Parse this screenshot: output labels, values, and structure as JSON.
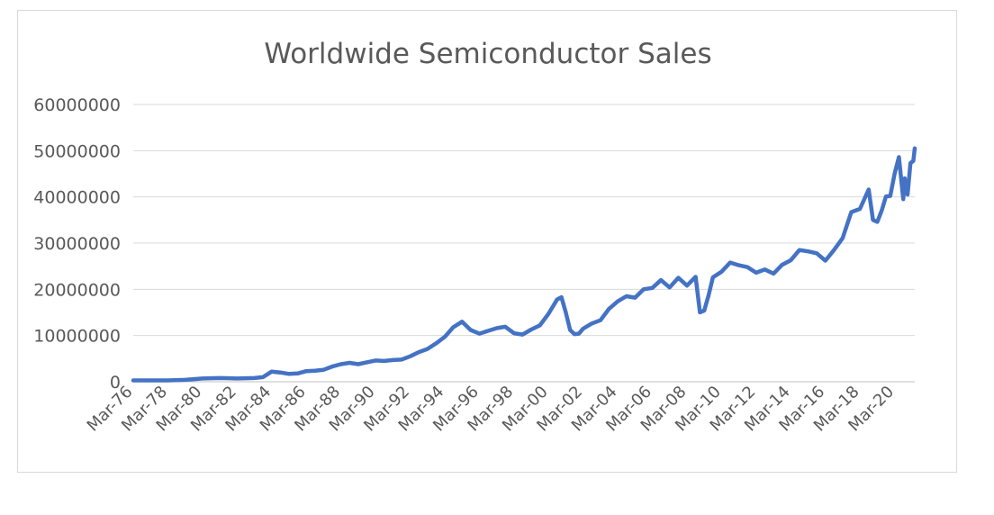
{
  "chart_data": {
    "type": "line",
    "title": "Worldwide Semiconductor Sales",
    "xlabel": "",
    "ylabel": "",
    "ylim": [
      0,
      60000000
    ],
    "yticks": [
      "0",
      "10000000",
      "20000000",
      "30000000",
      "40000000",
      "50000000",
      "60000000"
    ],
    "xticks": [
      "Mar-76",
      "Mar-78",
      "Mar-80",
      "Mar-82",
      "Mar-84",
      "Mar-86",
      "Mar-88",
      "Mar-90",
      "Mar-92",
      "Mar-94",
      "Mar-96",
      "Mar-98",
      "Mar-00",
      "Mar-02",
      "Mar-04",
      "Mar-06",
      "Mar-08",
      "Mar-10",
      "Mar-12",
      "Mar-14",
      "Mar-16",
      "Mar-18",
      "Mar-20"
    ],
    "grid": true,
    "legend": "none",
    "color": "#4472c4",
    "series": [
      {
        "x": [
          "Mar-76",
          "Mar-77",
          "Mar-78",
          "Mar-79",
          "Mar-80",
          "Mar-81",
          "Mar-82",
          "Mar-83",
          "Sep-83",
          "Mar-84",
          "Sep-84",
          "Mar-85",
          "Sep-85",
          "Mar-86",
          "Sep-86",
          "Mar-87",
          "Sep-87",
          "Mar-88",
          "Sep-88",
          "Mar-89",
          "Sep-89",
          "Mar-90",
          "Sep-90",
          "Mar-91",
          "Sep-91",
          "Mar-92",
          "Sep-92",
          "Mar-93",
          "Sep-93",
          "Mar-94",
          "Sep-94",
          "Mar-95",
          "Sep-95",
          "Mar-96",
          "Sep-96",
          "Mar-97",
          "Sep-97",
          "Mar-98",
          "Sep-98",
          "Mar-99",
          "Sep-99",
          "Mar-00",
          "Sep-00",
          "Dec-00",
          "Mar-01",
          "Jun-01",
          "Sep-01",
          "Dec-01",
          "Mar-02",
          "Sep-02",
          "Mar-03",
          "Sep-03",
          "Mar-04",
          "Sep-04",
          "Mar-05",
          "Sep-05",
          "Mar-06",
          "Sep-06",
          "Mar-07",
          "Sep-07",
          "Mar-08",
          "Sep-08",
          "Dec-08",
          "Mar-09",
          "Jun-09",
          "Sep-09",
          "Mar-10",
          "Sep-10",
          "Mar-11",
          "Sep-11",
          "Mar-12",
          "Sep-12",
          "Mar-13",
          "Sep-13",
          "Mar-14",
          "Sep-14",
          "Mar-15",
          "Sep-15",
          "Mar-16",
          "Sep-16",
          "Mar-17",
          "Sep-17",
          "Mar-18",
          "Sep-18",
          "Dec-18",
          "Mar-19",
          "Jun-19",
          "Sep-19",
          "Dec-19",
          "Mar-20",
          "Jun-20",
          "Sep-20",
          "Oct-20",
          "Dec-20",
          "Feb-21",
          "Apr-21",
          "May-21"
        ],
        "values": [
          300000,
          300000,
          300000,
          400000,
          700000,
          800000,
          700000,
          800000,
          1000000,
          2200000,
          2000000,
          1700000,
          1800000,
          2300000,
          2400000,
          2600000,
          3300000,
          3800000,
          4100000,
          3800000,
          4200000,
          4600000,
          4500000,
          4700000,
          4800000,
          5500000,
          6400000,
          7100000,
          8300000,
          9700000,
          11800000,
          13000000,
          11200000,
          10400000,
          11000000,
          11600000,
          11900000,
          10500000,
          10200000,
          11300000,
          12200000,
          14700000,
          17800000,
          18300000,
          15000000,
          11200000,
          10300000,
          10400000,
          11500000,
          12600000,
          13300000,
          15800000,
          17400000,
          18500000,
          18200000,
          20000000,
          20300000,
          22000000,
          20400000,
          22500000,
          20800000,
          22700000,
          15000000,
          15400000,
          18700000,
          22600000,
          23800000,
          25800000,
          25200000,
          24800000,
          23600000,
          24300000,
          23400000,
          25300000,
          26300000,
          28500000,
          28200000,
          27800000,
          26200000,
          28500000,
          31100000,
          36700000,
          37400000,
          41600000,
          35000000,
          34600000,
          37000000,
          40100000,
          40200000,
          45000000,
          48600000,
          39500000,
          44000000,
          40500000,
          47300000,
          47800000,
          50500000
        ]
      }
    ]
  }
}
